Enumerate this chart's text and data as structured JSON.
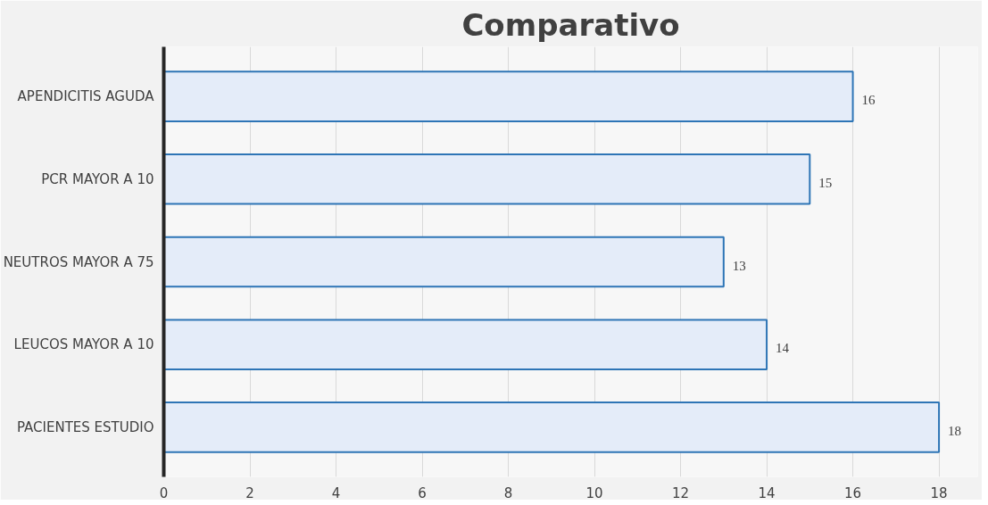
{
  "chart_data": {
    "type": "bar",
    "orientation": "horizontal",
    "title": "Comparativo",
    "categories": [
      "APENDICITIS AGUDA",
      "PCR MAYOR A 10",
      "NEUTROS MAYOR A 75",
      "LEUCOS MAYOR A 10",
      "PACIENTES ESTUDIO"
    ],
    "values": [
      16,
      15,
      13,
      14,
      18
    ],
    "color": "#e4ecf9",
    "xlim": [
      0,
      18
    ],
    "xticks": [
      0,
      2,
      4,
      6,
      8,
      10,
      12,
      14,
      16,
      18
    ],
    "grid": "x",
    "data_labels": true
  }
}
